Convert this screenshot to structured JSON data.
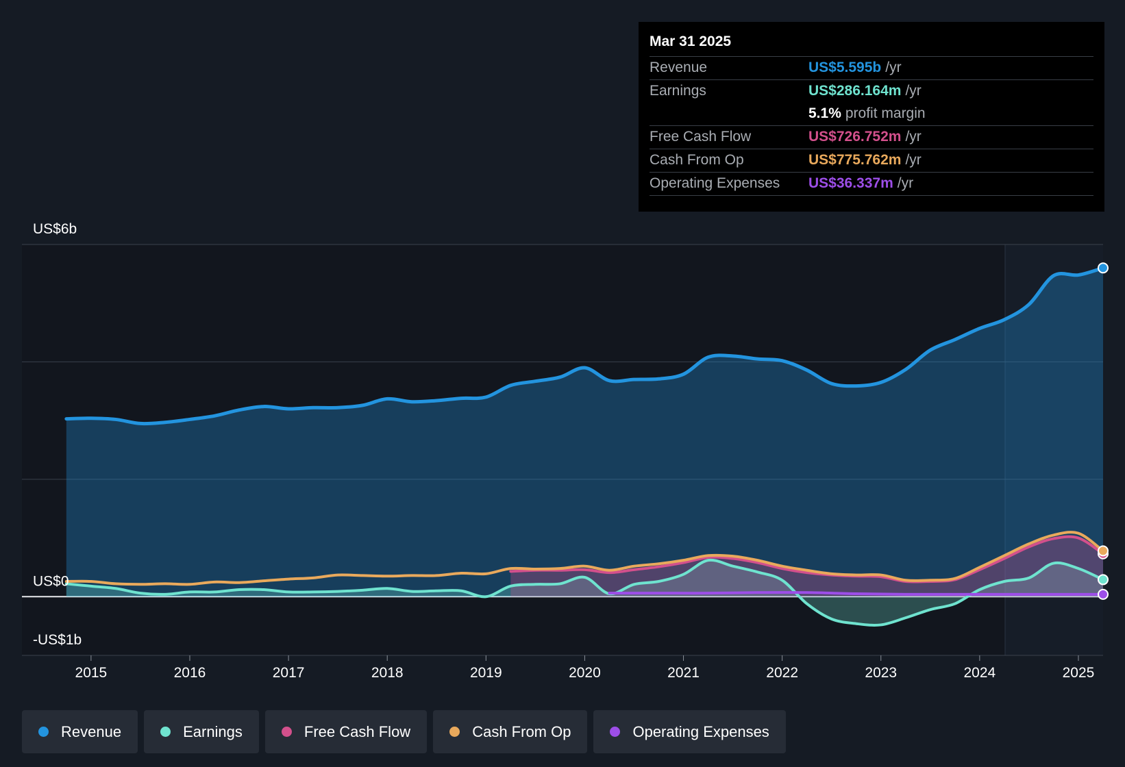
{
  "tooltip": {
    "date": "Mar 31 2025",
    "rows": [
      {
        "label": "Revenue",
        "value": "US$5.595b",
        "unit": "/yr"
      },
      {
        "label": "Earnings",
        "value": "US$286.164m",
        "unit": "/yr"
      },
      {
        "label": "",
        "value": "5.1%",
        "unit": "profit margin"
      },
      {
        "label": "Free Cash Flow",
        "value": "US$726.752m",
        "unit": "/yr"
      },
      {
        "label": "Cash From Op",
        "value": "US$775.762m",
        "unit": "/yr"
      },
      {
        "label": "Operating Expenses",
        "value": "US$36.337m",
        "unit": "/yr"
      }
    ]
  },
  "colors": {
    "revenue": "#2394df",
    "earnings": "#6fe3cf",
    "fcf": "#d3508c",
    "cfo": "#e9a95c",
    "opex": "#9d4ee8",
    "white": "#ffffff"
  },
  "legend": [
    {
      "label": "Revenue",
      "color": "#2394df"
    },
    {
      "label": "Earnings",
      "color": "#6fe3cf"
    },
    {
      "label": "Free Cash Flow",
      "color": "#d3508c"
    },
    {
      "label": "Cash From Op",
      "color": "#e9a95c"
    },
    {
      "label": "Operating Expenses",
      "color": "#9d4ee8"
    }
  ],
  "chart_data": {
    "type": "area",
    "title": "",
    "xlabel": "",
    "ylabel": "",
    "xlim": [
      2014.3,
      2025.25
    ],
    "ylim": [
      -1,
      6
    ],
    "x_ticks": [
      2015,
      2016,
      2017,
      2018,
      2019,
      2020,
      2021,
      2022,
      2023,
      2024,
      2025
    ],
    "y_tick_labels": [
      {
        "value": 6,
        "label": "US$6b"
      },
      {
        "value": 0,
        "label": "US$0"
      },
      {
        "value": -1,
        "label": "-US$1b"
      }
    ],
    "gridlines": [
      6,
      4,
      2,
      0
    ],
    "series": [
      {
        "name": "Revenue",
        "key": "revenue",
        "fill": true,
        "points": [
          [
            2014.75,
            3.03
          ],
          [
            2015.0,
            3.04
          ],
          [
            2015.25,
            3.02
          ],
          [
            2015.5,
            2.95
          ],
          [
            2015.75,
            2.97
          ],
          [
            2016.0,
            3.02
          ],
          [
            2016.25,
            3.08
          ],
          [
            2016.5,
            3.18
          ],
          [
            2016.75,
            3.24
          ],
          [
            2017.0,
            3.2
          ],
          [
            2017.25,
            3.22
          ],
          [
            2017.5,
            3.22
          ],
          [
            2017.75,
            3.26
          ],
          [
            2018.0,
            3.37
          ],
          [
            2018.25,
            3.32
          ],
          [
            2018.5,
            3.34
          ],
          [
            2018.75,
            3.38
          ],
          [
            2019.0,
            3.4
          ],
          [
            2019.25,
            3.6
          ],
          [
            2019.5,
            3.67
          ],
          [
            2019.75,
            3.74
          ],
          [
            2020.0,
            3.9
          ],
          [
            2020.25,
            3.68
          ],
          [
            2020.5,
            3.7
          ],
          [
            2020.75,
            3.71
          ],
          [
            2021.0,
            3.79
          ],
          [
            2021.25,
            4.08
          ],
          [
            2021.5,
            4.1
          ],
          [
            2021.75,
            4.05
          ],
          [
            2022.0,
            4.02
          ],
          [
            2022.25,
            3.86
          ],
          [
            2022.5,
            3.63
          ],
          [
            2022.75,
            3.59
          ],
          [
            2023.0,
            3.65
          ],
          [
            2023.25,
            3.87
          ],
          [
            2023.5,
            4.2
          ],
          [
            2023.75,
            4.38
          ],
          [
            2024.0,
            4.57
          ],
          [
            2024.25,
            4.72
          ],
          [
            2024.5,
            4.98
          ],
          [
            2024.75,
            5.47
          ],
          [
            2025.0,
            5.48
          ],
          [
            2025.25,
            5.6
          ]
        ]
      },
      {
        "name": "Earnings",
        "key": "earnings",
        "fill": true,
        "points": [
          [
            2014.75,
            0.22
          ],
          [
            2015.0,
            0.18
          ],
          [
            2015.25,
            0.14
          ],
          [
            2015.5,
            0.06
          ],
          [
            2015.75,
            0.04
          ],
          [
            2016.0,
            0.08
          ],
          [
            2016.25,
            0.08
          ],
          [
            2016.5,
            0.12
          ],
          [
            2016.75,
            0.12
          ],
          [
            2017.0,
            0.08
          ],
          [
            2017.25,
            0.08
          ],
          [
            2017.5,
            0.09
          ],
          [
            2017.75,
            0.11
          ],
          [
            2018.0,
            0.14
          ],
          [
            2018.25,
            0.09
          ],
          [
            2018.5,
            0.1
          ],
          [
            2018.75,
            0.1
          ],
          [
            2019.0,
            0.0
          ],
          [
            2019.25,
            0.18
          ],
          [
            2019.5,
            0.21
          ],
          [
            2019.75,
            0.22
          ],
          [
            2020.0,
            0.33
          ],
          [
            2020.25,
            0.05
          ],
          [
            2020.5,
            0.21
          ],
          [
            2020.75,
            0.26
          ],
          [
            2021.0,
            0.38
          ],
          [
            2021.25,
            0.62
          ],
          [
            2021.5,
            0.52
          ],
          [
            2021.75,
            0.42
          ],
          [
            2022.0,
            0.28
          ],
          [
            2022.25,
            -0.12
          ],
          [
            2022.5,
            -0.38
          ],
          [
            2022.75,
            -0.46
          ],
          [
            2023.0,
            -0.48
          ],
          [
            2023.25,
            -0.36
          ],
          [
            2023.5,
            -0.22
          ],
          [
            2023.75,
            -0.12
          ],
          [
            2024.0,
            0.12
          ],
          [
            2024.25,
            0.26
          ],
          [
            2024.5,
            0.32
          ],
          [
            2024.75,
            0.57
          ],
          [
            2025.0,
            0.48
          ],
          [
            2025.25,
            0.29
          ]
        ]
      },
      {
        "name": "Free Cash Flow",
        "key": "fcf",
        "fill": true,
        "points": [
          [
            2019.25,
            0.43
          ],
          [
            2019.5,
            0.45
          ],
          [
            2019.75,
            0.45
          ],
          [
            2020.0,
            0.46
          ],
          [
            2020.25,
            0.41
          ],
          [
            2020.5,
            0.46
          ],
          [
            2020.75,
            0.51
          ],
          [
            2021.0,
            0.58
          ],
          [
            2021.25,
            0.67
          ],
          [
            2021.5,
            0.65
          ],
          [
            2021.75,
            0.58
          ],
          [
            2022.0,
            0.48
          ],
          [
            2022.25,
            0.41
          ],
          [
            2022.5,
            0.37
          ],
          [
            2022.75,
            0.35
          ],
          [
            2023.0,
            0.34
          ],
          [
            2023.25,
            0.26
          ],
          [
            2023.5,
            0.26
          ],
          [
            2023.75,
            0.29
          ],
          [
            2024.0,
            0.46
          ],
          [
            2024.25,
            0.65
          ],
          [
            2024.5,
            0.85
          ],
          [
            2024.75,
            0.99
          ],
          [
            2025.0,
            1.0
          ],
          [
            2025.25,
            0.73
          ]
        ]
      },
      {
        "name": "Cash From Op",
        "key": "cfo",
        "fill": false,
        "points": [
          [
            2014.75,
            0.26
          ],
          [
            2015.0,
            0.26
          ],
          [
            2015.25,
            0.22
          ],
          [
            2015.5,
            0.21
          ],
          [
            2015.75,
            0.22
          ],
          [
            2016.0,
            0.21
          ],
          [
            2016.25,
            0.25
          ],
          [
            2016.5,
            0.24
          ],
          [
            2016.75,
            0.27
          ],
          [
            2017.0,
            0.3
          ],
          [
            2017.25,
            0.32
          ],
          [
            2017.5,
            0.37
          ],
          [
            2017.75,
            0.36
          ],
          [
            2018.0,
            0.35
          ],
          [
            2018.25,
            0.36
          ],
          [
            2018.5,
            0.36
          ],
          [
            2018.75,
            0.4
          ],
          [
            2019.0,
            0.39
          ],
          [
            2019.25,
            0.48
          ],
          [
            2019.5,
            0.47
          ],
          [
            2019.75,
            0.48
          ],
          [
            2020.0,
            0.52
          ],
          [
            2020.25,
            0.45
          ],
          [
            2020.5,
            0.52
          ],
          [
            2020.75,
            0.56
          ],
          [
            2021.0,
            0.62
          ],
          [
            2021.25,
            0.7
          ],
          [
            2021.5,
            0.69
          ],
          [
            2021.75,
            0.62
          ],
          [
            2022.0,
            0.52
          ],
          [
            2022.25,
            0.45
          ],
          [
            2022.5,
            0.39
          ],
          [
            2022.75,
            0.37
          ],
          [
            2023.0,
            0.37
          ],
          [
            2023.25,
            0.28
          ],
          [
            2023.5,
            0.28
          ],
          [
            2023.75,
            0.31
          ],
          [
            2024.0,
            0.5
          ],
          [
            2024.25,
            0.7
          ],
          [
            2024.5,
            0.9
          ],
          [
            2024.75,
            1.05
          ],
          [
            2025.0,
            1.08
          ],
          [
            2025.25,
            0.78
          ]
        ]
      },
      {
        "name": "Operating Expenses",
        "key": "opex",
        "fill": false,
        "points": [
          [
            2020.25,
            0.06
          ],
          [
            2020.75,
            0.06
          ],
          [
            2021.25,
            0.06
          ],
          [
            2021.75,
            0.07
          ],
          [
            2022.25,
            0.07
          ],
          [
            2022.75,
            0.05
          ],
          [
            2023.25,
            0.04
          ],
          [
            2023.75,
            0.04
          ],
          [
            2024.25,
            0.04
          ],
          [
            2024.75,
            0.04
          ],
          [
            2025.25,
            0.04
          ]
        ]
      }
    ]
  }
}
